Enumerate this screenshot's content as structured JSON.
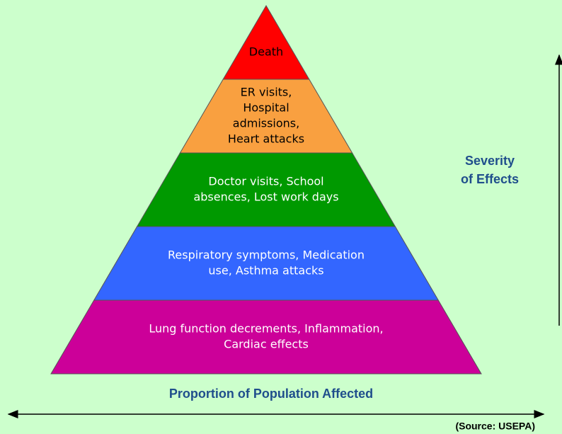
{
  "levels": [
    {
      "lines": [
        "Death"
      ],
      "color": "#ff0000",
      "text_color": "#000000"
    },
    {
      "lines": [
        "ER visits,",
        "Hospital",
        "admissions,",
        "Heart attacks"
      ],
      "color": "#f9a040",
      "text_color": "#000000"
    },
    {
      "lines": [
        "Doctor visits, School",
        "absences, Lost work days"
      ],
      "color": "#009900",
      "text_color": "#ffffff"
    },
    {
      "lines": [
        "Respiratory symptoms, Medication",
        "use, Asthma attacks"
      ],
      "color": "#3366ff",
      "text_color": "#ffffff"
    },
    {
      "lines": [
        "Lung function decrements, Inflammation,",
        "Cardiac effects"
      ],
      "color": "#cc0099",
      "text_color": "#ffffff"
    }
  ],
  "vertical_axis": {
    "lines": [
      "Severity",
      "of Effects"
    ]
  },
  "horizontal_axis": {
    "label": "Proportion of Population Affected"
  },
  "source": "(Source: USEPA)"
}
